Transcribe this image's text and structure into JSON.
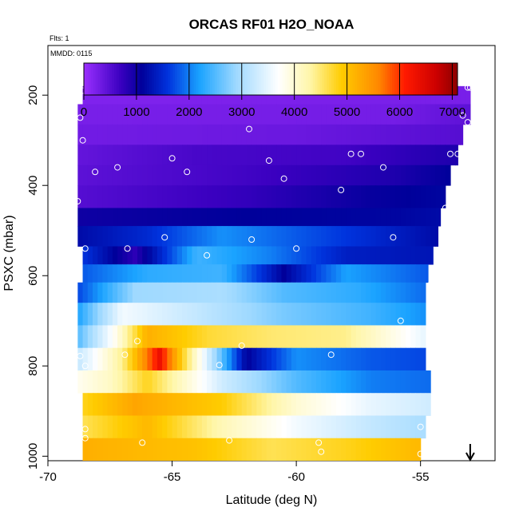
{
  "chart_data": {
    "type": "heatmap",
    "title": "ORCAS RF01 H2O_NOAA",
    "flights_note": "Flts: 1",
    "date_note": "MMDD: 0115",
    "xlabel": "Latitude (deg N)",
    "ylabel": "PSXC (mbar)",
    "xlim": [
      -70,
      -52
    ],
    "ylim": [
      1010,
      90
    ],
    "x_ticks": [
      -70,
      -65,
      -60,
      -55
    ],
    "y_ticks": [
      200,
      400,
      600,
      800,
      1000
    ],
    "colorbar": {
      "range": [
        0,
        7100
      ],
      "ticks": [
        0,
        1000,
        2000,
        3000,
        4000,
        5000,
        6000,
        7000
      ],
      "color_stops": [
        {
          "v": 0,
          "c": "#9b30ff"
        },
        {
          "v": 700,
          "c": "#3a00c0"
        },
        {
          "v": 1100,
          "c": "#00009a"
        },
        {
          "v": 1600,
          "c": "#0033dd"
        },
        {
          "v": 2200,
          "c": "#1aa3ff"
        },
        {
          "v": 2900,
          "c": "#9fd9ff"
        },
        {
          "v": 3700,
          "c": "#ffffff"
        },
        {
          "v": 4300,
          "c": "#fff6a8"
        },
        {
          "v": 4900,
          "c": "#ffcc00"
        },
        {
          "v": 5600,
          "c": "#ff8800"
        },
        {
          "v": 6100,
          "c": "#ff1a00"
        },
        {
          "v": 6700,
          "c": "#cc0000"
        },
        {
          "v": 7100,
          "c": "#8b0000"
        }
      ]
    },
    "bands": [
      {
        "p_top": 180,
        "p_bot": 220,
        "lat_min": -68.6,
        "lat_max": -53.0,
        "values": [
          {
            "lat": -68.6,
            "v": 200
          },
          {
            "lat": -53.0,
            "v": 250
          }
        ]
      },
      {
        "p_top": 220,
        "p_bot": 265,
        "lat_min": -68.8,
        "lat_max": -53.0,
        "values": [
          {
            "lat": -68.8,
            "v": 250
          },
          {
            "lat": -56.0,
            "v": 280
          },
          {
            "lat": -53.0,
            "v": 450
          }
        ]
      },
      {
        "p_top": 265,
        "p_bot": 310,
        "lat_min": -68.8,
        "lat_max": -53.3,
        "values": [
          {
            "lat": -68.8,
            "v": 300
          },
          {
            "lat": -60.0,
            "v": 350
          },
          {
            "lat": -53.3,
            "v": 500
          }
        ]
      },
      {
        "p_top": 310,
        "p_bot": 355,
        "lat_min": -68.8,
        "lat_max": -53.5,
        "values": [
          {
            "lat": -68.8,
            "v": 400
          },
          {
            "lat": -64.0,
            "v": 600
          },
          {
            "lat": -58.0,
            "v": 650
          },
          {
            "lat": -53.5,
            "v": 900
          }
        ]
      },
      {
        "p_top": 355,
        "p_bot": 400,
        "lat_min": -68.8,
        "lat_max": -53.8,
        "values": [
          {
            "lat": -68.8,
            "v": 450
          },
          {
            "lat": -62.0,
            "v": 650
          },
          {
            "lat": -56.0,
            "v": 900
          },
          {
            "lat": -53.8,
            "v": 1100
          }
        ]
      },
      {
        "p_top": 400,
        "p_bot": 450,
        "lat_min": -68.8,
        "lat_max": -54.0,
        "values": [
          {
            "lat": -68.8,
            "v": 500
          },
          {
            "lat": -62.0,
            "v": 750
          },
          {
            "lat": -57.0,
            "v": 1050
          },
          {
            "lat": -54.0,
            "v": 1150
          }
        ]
      },
      {
        "p_top": 450,
        "p_bot": 490,
        "lat_min": -68.8,
        "lat_max": -54.2,
        "values": [
          {
            "lat": -68.8,
            "v": 1000
          },
          {
            "lat": -62.0,
            "v": 1100
          },
          {
            "lat": -56.0,
            "v": 1150
          },
          {
            "lat": -54.2,
            "v": 1200
          }
        ]
      },
      {
        "p_top": 490,
        "p_bot": 535,
        "lat_min": -68.8,
        "lat_max": -54.3,
        "values": [
          {
            "lat": -68.8,
            "v": 1200
          },
          {
            "lat": -66.0,
            "v": 1500
          },
          {
            "lat": -63.0,
            "v": 2100
          },
          {
            "lat": -60.0,
            "v": 1800
          },
          {
            "lat": -57.0,
            "v": 1500
          },
          {
            "lat": -54.3,
            "v": 1200
          }
        ]
      },
      {
        "p_top": 535,
        "p_bot": 575,
        "lat_min": -68.6,
        "lat_max": -54.5,
        "values": [
          {
            "lat": -68.6,
            "v": 1600
          },
          {
            "lat": -66.5,
            "v": 800
          },
          {
            "lat": -64.0,
            "v": 2400
          },
          {
            "lat": -61.0,
            "v": 2000
          },
          {
            "lat": -58.0,
            "v": 1400
          },
          {
            "lat": -54.5,
            "v": 1300
          }
        ]
      },
      {
        "p_top": 575,
        "p_bot": 615,
        "lat_min": -68.6,
        "lat_max": -54.7,
        "values": [
          {
            "lat": -68.6,
            "v": 1800
          },
          {
            "lat": -66.0,
            "v": 2300
          },
          {
            "lat": -63.0,
            "v": 2400
          },
          {
            "lat": -60.5,
            "v": 1100
          },
          {
            "lat": -58.0,
            "v": 2200
          },
          {
            "lat": -54.7,
            "v": 1800
          }
        ]
      },
      {
        "p_top": 615,
        "p_bot": 660,
        "lat_min": -68.8,
        "lat_max": -54.8,
        "values": [
          {
            "lat": -68.8,
            "v": 1700
          },
          {
            "lat": -66.5,
            "v": 2900
          },
          {
            "lat": -63.0,
            "v": 3000
          },
          {
            "lat": -60.5,
            "v": 2500
          },
          {
            "lat": -57.5,
            "v": 2300
          },
          {
            "lat": -54.8,
            "v": 1900
          }
        ]
      },
      {
        "p_top": 660,
        "p_bot": 710,
        "lat_min": -68.8,
        "lat_max": -54.8,
        "values": [
          {
            "lat": -68.8,
            "v": 2200
          },
          {
            "lat": -67.0,
            "v": 3600
          },
          {
            "lat": -64.0,
            "v": 3200
          },
          {
            "lat": -60.5,
            "v": 2700
          },
          {
            "lat": -57.0,
            "v": 2400
          },
          {
            "lat": -54.8,
            "v": 2100
          }
        ]
      },
      {
        "p_top": 710,
        "p_bot": 760,
        "lat_min": -68.8,
        "lat_max": -54.8,
        "values": [
          {
            "lat": -68.8,
            "v": 2500
          },
          {
            "lat": -67.3,
            "v": 3800
          },
          {
            "lat": -66.0,
            "v": 5200
          },
          {
            "lat": -63.5,
            "v": 4700
          },
          {
            "lat": -61.0,
            "v": 4500
          },
          {
            "lat": -58.0,
            "v": 4400
          },
          {
            "lat": -54.8,
            "v": 3500
          }
        ]
      },
      {
        "p_top": 760,
        "p_bot": 810,
        "lat_min": -68.8,
        "lat_max": -54.8,
        "values": [
          {
            "lat": -68.8,
            "v": 3200
          },
          {
            "lat": -67.0,
            "v": 4400
          },
          {
            "lat": -65.5,
            "v": 6300
          },
          {
            "lat": -64.5,
            "v": 4700
          },
          {
            "lat": -62.0,
            "v": 1100
          },
          {
            "lat": -60.0,
            "v": 2100
          },
          {
            "lat": -57.0,
            "v": 1800
          },
          {
            "lat": -54.8,
            "v": 1700
          }
        ]
      },
      {
        "p_top": 810,
        "p_bot": 860,
        "lat_min": -68.8,
        "lat_max": -54.6,
        "values": [
          {
            "lat": -68.8,
            "v": 3800
          },
          {
            "lat": -67.5,
            "v": 4100
          },
          {
            "lat": -66.0,
            "v": 4800
          },
          {
            "lat": -63.0,
            "v": 3300
          },
          {
            "lat": -60.0,
            "v": 2500
          },
          {
            "lat": -57.0,
            "v": 2000
          },
          {
            "lat": -54.6,
            "v": 1900
          }
        ]
      },
      {
        "p_top": 860,
        "p_bot": 910,
        "lat_min": -68.6,
        "lat_max": -54.6,
        "values": [
          {
            "lat": -68.6,
            "v": 4800
          },
          {
            "lat": -66.5,
            "v": 5300
          },
          {
            "lat": -63.0,
            "v": 4900
          },
          {
            "lat": -60.0,
            "v": 4000
          },
          {
            "lat": -57.0,
            "v": 3500
          },
          {
            "lat": -54.6,
            "v": 3300
          }
        ]
      },
      {
        "p_top": 910,
        "p_bot": 960,
        "lat_min": -68.6,
        "lat_max": -54.8,
        "values": [
          {
            "lat": -68.6,
            "v": 4600
          },
          {
            "lat": -66.0,
            "v": 5100
          },
          {
            "lat": -63.0,
            "v": 4200
          },
          {
            "lat": -60.0,
            "v": 3600
          },
          {
            "lat": -57.0,
            "v": 3200
          },
          {
            "lat": -54.8,
            "v": 3000
          }
        ]
      },
      {
        "p_top": 960,
        "p_bot": 1010,
        "lat_min": -68.6,
        "lat_max": -55.0,
        "values": [
          {
            "lat": -68.6,
            "v": 5200
          },
          {
            "lat": -64.0,
            "v": 5000
          },
          {
            "lat": -61.0,
            "v": 4600
          },
          {
            "lat": -58.0,
            "v": 4800
          },
          {
            "lat": -55.0,
            "v": 5100
          }
        ]
      },
      {
        "p_top": 1010,
        "p_bot": 1055,
        "lat_min": -66.2,
        "lat_max": -55.0,
        "values": [
          {
            "lat": -66.2,
            "v": 5800
          },
          {
            "lat": -64.5,
            "v": 5000
          },
          {
            "lat": -61.0,
            "v": 4400
          },
          {
            "lat": -58.5,
            "v": 4400
          },
          {
            "lat": -57.0,
            "v": 5600
          },
          {
            "lat": -56.0,
            "v": 6400
          },
          {
            "lat": -55.0,
            "v": 7100
          }
        ]
      }
    ],
    "points": [
      [
        -68.6,
        190
      ],
      [
        -66.2,
        185
      ],
      [
        -56.1,
        185
      ],
      [
        -53.1,
        183
      ],
      [
        -53.0,
        183
      ],
      [
        -68.7,
        250
      ],
      [
        -61.9,
        275
      ],
      [
        -53.3,
        245
      ],
      [
        -53.1,
        260
      ],
      [
        -68.6,
        300
      ],
      [
        -65.0,
        340
      ],
      [
        -61.1,
        345
      ],
      [
        -57.8,
        330
      ],
      [
        -57.4,
        330
      ],
      [
        -53.8,
        330
      ],
      [
        -53.5,
        330
      ],
      [
        -68.1,
        370
      ],
      [
        -67.2,
        360
      ],
      [
        -64.4,
        370
      ],
      [
        -60.5,
        385
      ],
      [
        -56.5,
        360
      ],
      [
        -58.2,
        410
      ],
      [
        -68.8,
        435
      ],
      [
        -54.0,
        450
      ],
      [
        -65.3,
        515
      ],
      [
        -61.8,
        520
      ],
      [
        -56.1,
        515
      ],
      [
        -68.5,
        540
      ],
      [
        -66.8,
        540
      ],
      [
        -63.6,
        555
      ],
      [
        -60.0,
        540
      ],
      [
        -54.6,
        620
      ],
      [
        -55.8,
        700
      ],
      [
        -66.9,
        775
      ],
      [
        -66.4,
        745
      ],
      [
        -62.2,
        755
      ],
      [
        -58.6,
        775
      ],
      [
        -68.7,
        778
      ],
      [
        -63.1,
        798
      ],
      [
        -68.5,
        800
      ],
      [
        -54.4,
        840
      ],
      [
        -68.5,
        940
      ],
      [
        -55.0,
        935
      ],
      [
        -66.2,
        970
      ],
      [
        -62.7,
        965
      ],
      [
        -59.1,
        970
      ],
      [
        -59.0,
        990
      ],
      [
        -55.0,
        995
      ],
      [
        -68.5,
        960
      ]
    ],
    "arrow_lat": -53.0
  }
}
